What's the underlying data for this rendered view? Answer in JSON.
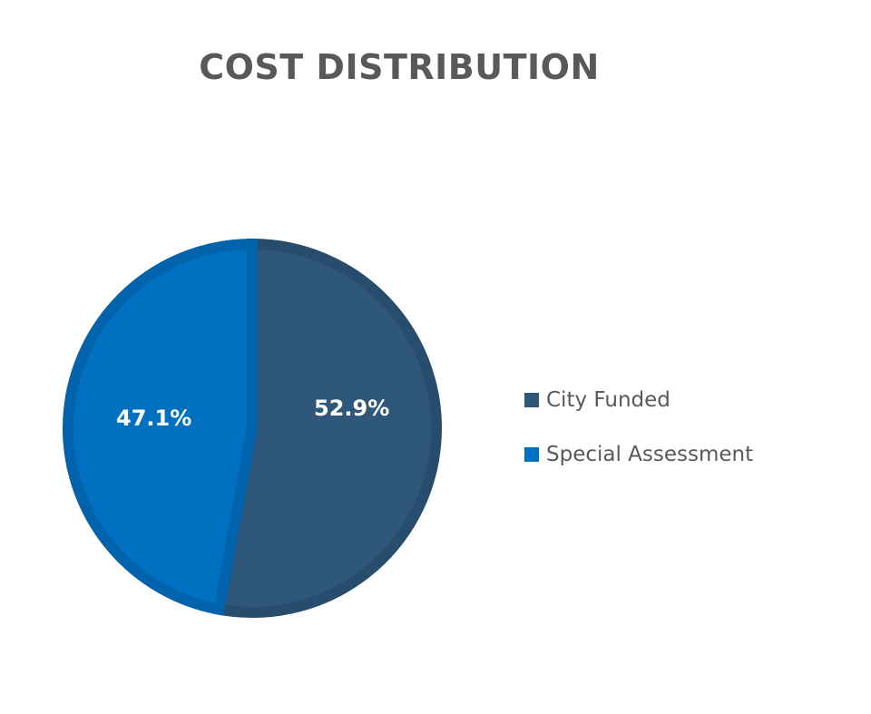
{
  "chart_data": {
    "type": "pie",
    "title": "COST DISTRIBUTION",
    "categories": [
      "City Funded",
      "Special Assessment"
    ],
    "values": [
      52.9,
      47.1
    ],
    "labels": [
      "52.9%",
      "47.1%"
    ],
    "colors": [
      "#2E5779",
      "#0070C0"
    ],
    "border_colors": [
      "#284D6C",
      "#0063AC"
    ],
    "legend_position": "right"
  },
  "title": "COST DISTRIBUTION",
  "legend": [
    {
      "label": "City Funded",
      "color": "#2E5779"
    },
    {
      "label": "Special Assessment",
      "color": "#0070C0"
    }
  ],
  "slice_labels": {
    "city_funded": "52.9%",
    "special_assessment": "47.1%"
  }
}
